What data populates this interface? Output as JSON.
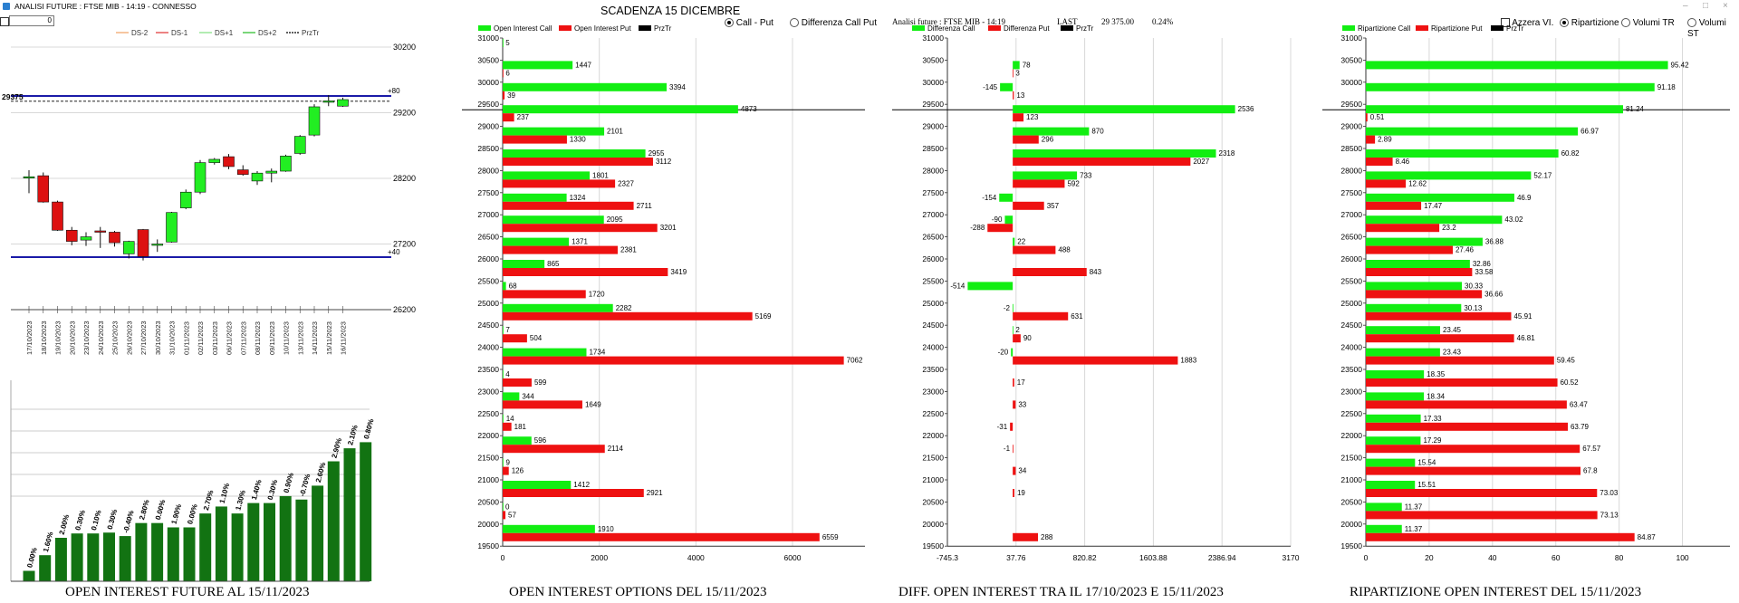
{
  "window": {
    "title": "ANALISI FUTURE : FTSE MIB - 14:19 - CONNESSO",
    "min": "–",
    "max": "□",
    "close": "×"
  },
  "controls": {
    "spin_value": "0",
    "scadenza": "SCADENZA 15 DICEMBRE",
    "view_options": [
      "Call - Put",
      "Differenza Call Put"
    ],
    "view_selected": 0,
    "analysis_info": "Analisi future : FTSE MIB - 14:19",
    "last_label": "LAST",
    "last_value": "29 375.00",
    "last_change": "0.24%",
    "azzera_label": "Azzera VI.",
    "ripart_options": [
      "Ripartizione",
      "Volumi TR",
      "Volumi ST"
    ],
    "ripart_selected": 0
  },
  "colors": {
    "call": "#12ee12",
    "put": "#ee1111",
    "bull_candle": "#22ee22",
    "bear_candle": "#dd1111",
    "oi_bar": "#127312",
    "level_line": "#1a1aa8",
    "grid": "#d8d8d8",
    "price_line": "#000000"
  },
  "chart_data": [
    {
      "type": "candlestick",
      "legend": [
        "DS-2",
        "DS-1",
        "DS+1",
        "DS+2",
        "PrzTr"
      ],
      "legend_colors": [
        "#f0a060",
        "#e03030",
        "#7ee07e",
        "#22bb22",
        "#000000"
      ],
      "y_ticks": [
        30200,
        29200,
        28200,
        27200,
        26200
      ],
      "ylim": [
        26200,
        30200
      ],
      "price_marker": "29375",
      "level_plus": {
        "label": "+80",
        "value": 29455
      },
      "level_minus": {
        "label": "+40",
        "value": 27000
      },
      "price_line": 29375,
      "dates": [
        "17/10/2023",
        "18/10/2023",
        "19/10/2023",
        "20/10/2023",
        "23/10/2023",
        "24/10/2023",
        "25/10/2023",
        "26/10/2023",
        "27/10/2023",
        "30/10/2023",
        "31/10/2023",
        "01/11/2023",
        "02/11/2023",
        "03/11/2023",
        "06/11/2023",
        "07/11/2023",
        "08/11/2023",
        "09/11/2023",
        "10/11/2023",
        "13/11/2023",
        "14/11/2023",
        "15/11/2023",
        "16/11/2023"
      ],
      "candles": [
        {
          "o": 28225,
          "h": 28325,
          "l": 27975,
          "c": 28225
        },
        {
          "o": 28240,
          "h": 28290,
          "l": 27830,
          "c": 27840
        },
        {
          "o": 27840,
          "h": 27860,
          "l": 27400,
          "c": 27410
        },
        {
          "o": 27410,
          "h": 27460,
          "l": 27180,
          "c": 27240
        },
        {
          "o": 27260,
          "h": 27380,
          "l": 27170,
          "c": 27310
        },
        {
          "o": 27400,
          "h": 27460,
          "l": 27140,
          "c": 27380
        },
        {
          "o": 27380,
          "h": 27400,
          "l": 27160,
          "c": 27220
        },
        {
          "o": 27050,
          "h": 27250,
          "l": 26980,
          "c": 27240
        },
        {
          "o": 27420,
          "h": 27430,
          "l": 26950,
          "c": 27010
        },
        {
          "o": 27180,
          "h": 27270,
          "l": 27080,
          "c": 27200
        },
        {
          "o": 27230,
          "h": 27690,
          "l": 27220,
          "c": 27680
        },
        {
          "o": 27750,
          "h": 28030,
          "l": 27730,
          "c": 27990
        },
        {
          "o": 27990,
          "h": 28480,
          "l": 27960,
          "c": 28440
        },
        {
          "o": 28440,
          "h": 28510,
          "l": 28410,
          "c": 28490
        },
        {
          "o": 28530,
          "h": 28570,
          "l": 28340,
          "c": 28380
        },
        {
          "o": 28330,
          "h": 28400,
          "l": 28240,
          "c": 28260
        },
        {
          "o": 28160,
          "h": 28310,
          "l": 28100,
          "c": 28280
        },
        {
          "o": 28280,
          "h": 28350,
          "l": 28140,
          "c": 28310
        },
        {
          "o": 28310,
          "h": 28560,
          "l": 28300,
          "c": 28540
        },
        {
          "o": 28580,
          "h": 28860,
          "l": 28560,
          "c": 28840
        },
        {
          "o": 28860,
          "h": 29330,
          "l": 28840,
          "c": 29290
        },
        {
          "o": 29360,
          "h": 29470,
          "l": 29300,
          "c": 29380
        },
        {
          "o": 29300,
          "h": 29430,
          "l": 29290,
          "c": 29400
        }
      ]
    },
    {
      "type": "bar",
      "title": "OPEN INTEREST FUTURE AL 15/11/2023",
      "values": [
        12,
        30,
        50,
        55,
        55,
        56,
        52,
        67,
        67,
        62,
        62,
        78,
        86,
        78,
        90,
        90,
        98,
        94,
        110,
        138,
        153,
        160
      ],
      "labels": [
        "0.00%",
        "1.60%",
        "2.00%",
        "0.30%",
        "0.10%",
        "0.30%",
        "-0.40%",
        "2.80%",
        "0.00%",
        "1.90%",
        "0.00%",
        "2.70%",
        "1.10%",
        "1.30%",
        "1.40%",
        "0.30%",
        "0.90%",
        "-0.70%",
        "2.60%",
        "2.90%",
        "2.10%",
        "0.80%"
      ]
    },
    {
      "type": "bar",
      "orientation": "horizontal",
      "title": "OPEN INTEREST OPTIONS DEL 15/11/2023",
      "legend": [
        "Open Interest Call",
        "Open Interest Put",
        "PrzTr"
      ],
      "strikes": [
        31000,
        30500,
        30000,
        29500,
        29000,
        28500,
        28000,
        27500,
        27000,
        26500,
        26000,
        25500,
        25000,
        24500,
        24000,
        23500,
        23000,
        22500,
        22000,
        21500,
        21000,
        20500,
        20000,
        19500
      ],
      "series": [
        {
          "name": "Open Interest Call",
          "values": [
            5,
            1447,
            3394,
            4873,
            2101,
            2955,
            1801,
            1324,
            2095,
            1371,
            865,
            68,
            2282,
            7,
            1734,
            4,
            344,
            14,
            596,
            9,
            1412,
            0,
            1910,
            null
          ]
        },
        {
          "name": "Open Interest Put",
          "values": [
            null,
            6,
            39,
            237,
            1330,
            3112,
            2327,
            2711,
            3201,
            2381,
            3419,
            1720,
            5169,
            504,
            7062,
            599,
            1649,
            181,
            2114,
            126,
            2921,
            57,
            6559,
            null
          ]
        }
      ],
      "x_ticks": [
        0,
        2000,
        4000,
        6000
      ],
      "xlim": [
        0,
        7500
      ],
      "price_line": 29375
    },
    {
      "type": "bar",
      "orientation": "horizontal",
      "title": "DIFF. OPEN INTEREST TRA IL 17/10/2023 E 15/11/2023",
      "legend": [
        "Differenza Call",
        "Differenza Put",
        "PrzTr"
      ],
      "strikes": [
        31000,
        30500,
        30000,
        29500,
        29000,
        28500,
        28000,
        27500,
        27000,
        26500,
        26000,
        25500,
        25000,
        24500,
        24000,
        23500,
        23000,
        22500,
        22000,
        21500,
        21000,
        20500,
        20000,
        19500
      ],
      "series": [
        {
          "name": "Differenza Call",
          "values": [
            null,
            78,
            -145,
            2536,
            870,
            2318,
            733,
            -154,
            -90,
            22,
            null,
            -514,
            -2,
            2,
            -20,
            null,
            null,
            null,
            null,
            null,
            null,
            null,
            null,
            null
          ]
        },
        {
          "name": "Differenza Put",
          "values": [
            null,
            3,
            13,
            123,
            296,
            2027,
            592,
            357,
            -288,
            488,
            843,
            null,
            631,
            90,
            1883,
            17,
            33,
            -31,
            -1,
            34,
            19,
            null,
            288,
            null
          ]
        }
      ],
      "x_ticks": [
        "-745.3",
        "37.76",
        "820.82",
        "1603.88",
        "2386.94",
        "3170"
      ],
      "xlim": [
        -745.3,
        3170
      ],
      "price_line": 29375
    },
    {
      "type": "bar",
      "orientation": "horizontal",
      "title": "RIPARTIZIONE OPEN INTEREST DEL 15/11/2023",
      "legend": [
        "Ripartizione Call",
        "Ripartizione Put",
        "PrzTr"
      ],
      "strikes": [
        31000,
        30500,
        30000,
        29500,
        29000,
        28500,
        28000,
        27500,
        27000,
        26500,
        26000,
        25500,
        25000,
        24500,
        24000,
        23500,
        23000,
        22500,
        22000,
        21500,
        21000,
        20500,
        20000,
        19500
      ],
      "series": [
        {
          "name": "Ripartizione Call",
          "values": [
            null,
            95.42,
            91.18,
            81.24,
            66.97,
            60.82,
            52.17,
            46.9,
            43.02,
            36.88,
            32.86,
            30.33,
            30.13,
            23.45,
            23.43,
            18.35,
            18.34,
            17.33,
            17.29,
            15.54,
            15.51,
            11.37,
            11.37,
            null
          ]
        },
        {
          "name": "Ripartizione Put",
          "values": [
            null,
            null,
            null,
            0.51,
            2.89,
            8.46,
            12.62,
            17.47,
            23.2,
            27.46,
            33.58,
            36.66,
            45.91,
            46.81,
            59.45,
            60.52,
            63.47,
            63.79,
            67.57,
            67.8,
            73.03,
            73.13,
            84.87,
            null
          ]
        }
      ],
      "x_ticks": [
        0,
        20,
        40,
        60,
        80,
        100
      ],
      "xlim": [
        0,
        115
      ],
      "price_line": 29375
    }
  ]
}
